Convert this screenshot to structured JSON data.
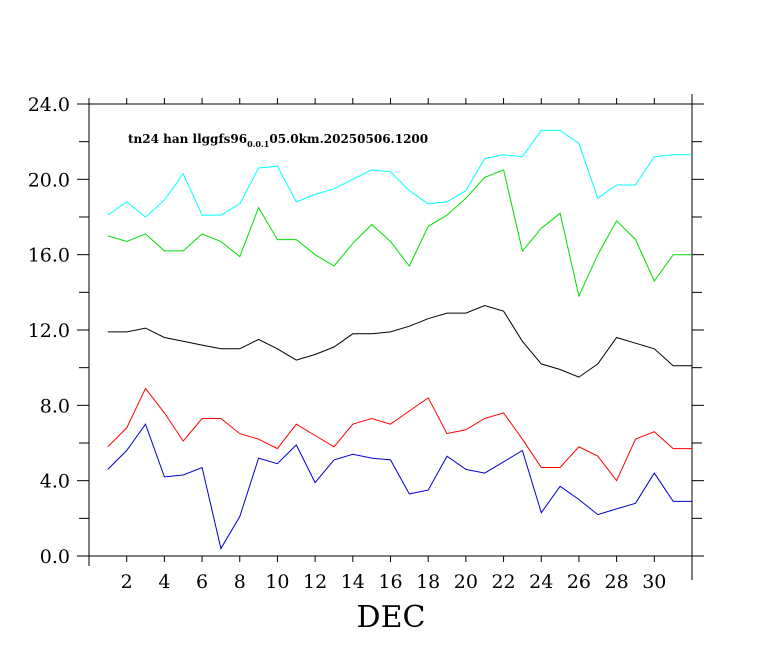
{
  "chart_data": {
    "type": "line",
    "title": "",
    "annotation": {
      "prefix": "tn24 han llggfs96",
      "subscript": "0.0.1",
      "suffix": "05.0km.20250506.1200"
    },
    "xlabel": "DEC",
    "ylabel": "",
    "xlim": [
      0,
      32
    ],
    "ylim": [
      0,
      24
    ],
    "x_ticks": [
      2,
      4,
      6,
      8,
      10,
      12,
      14,
      16,
      18,
      20,
      22,
      24,
      26,
      28,
      30
    ],
    "x_tick_labels": [
      "2",
      "4",
      "6",
      "8",
      "10",
      "12",
      "14",
      "16",
      "18",
      "20",
      "22",
      "24",
      "26",
      "28",
      "30"
    ],
    "y_ticks": [
      0,
      4,
      8,
      12,
      16,
      20,
      24
    ],
    "y_tick_labels": [
      "0.0",
      "4.0",
      "8.0",
      "12.0",
      "16.0",
      "20.0",
      "24.0"
    ],
    "grid": false,
    "legend": "none",
    "x": [
      1,
      2,
      3,
      4,
      5,
      6,
      7,
      8,
      9,
      10,
      11,
      12,
      13,
      14,
      15,
      16,
      17,
      18,
      19,
      20,
      21,
      22,
      23,
      24,
      25,
      26,
      27,
      28,
      29,
      30,
      31,
      32
    ],
    "series": [
      {
        "color": "#00ffff",
        "values": [
          18.1,
          18.8,
          18.0,
          18.9,
          20.3,
          18.1,
          18.1,
          18.7,
          20.6,
          20.7,
          18.8,
          19.2,
          19.5,
          20.0,
          20.5,
          20.4,
          19.4,
          18.7,
          18.8,
          19.4,
          21.1,
          21.3,
          21.2,
          22.6,
          22.6,
          21.9,
          19.0,
          19.7,
          19.7,
          21.2,
          21.3,
          21.3
        ]
      },
      {
        "color": "#00dd00",
        "values": [
          17.0,
          16.7,
          17.1,
          16.2,
          16.2,
          17.1,
          16.7,
          15.9,
          18.5,
          16.8,
          16.8,
          16.0,
          15.4,
          16.6,
          17.6,
          16.7,
          15.4,
          17.5,
          18.1,
          19.0,
          20.1,
          20.5,
          16.2,
          17.4,
          18.2,
          13.8,
          16.0,
          17.8,
          16.8,
          14.6,
          16.0,
          16.0
        ]
      },
      {
        "color": "#000000",
        "values": [
          11.9,
          11.9,
          12.1,
          11.6,
          11.4,
          11.2,
          11.0,
          11.0,
          11.5,
          11.0,
          10.4,
          10.7,
          11.1,
          11.8,
          11.8,
          11.9,
          12.2,
          12.6,
          12.9,
          12.9,
          13.3,
          13.0,
          11.4,
          10.2,
          9.9,
          9.5,
          10.2,
          11.6,
          11.3,
          11.0,
          10.1,
          10.1
        ]
      },
      {
        "color": "#ff0000",
        "values": [
          5.8,
          6.8,
          8.9,
          7.6,
          6.1,
          7.3,
          7.3,
          6.5,
          6.2,
          5.7,
          7.0,
          6.4,
          5.8,
          7.0,
          7.3,
          7.0,
          7.7,
          8.4,
          6.5,
          6.7,
          7.3,
          7.6,
          6.2,
          4.7,
          4.7,
          5.8,
          5.3,
          4.0,
          6.2,
          6.6,
          5.7,
          5.7
        ]
      },
      {
        "color": "#0000cc",
        "values": [
          4.6,
          5.6,
          7.0,
          4.2,
          4.3,
          4.7,
          0.4,
          2.1,
          5.2,
          4.9,
          5.9,
          3.9,
          5.1,
          5.4,
          5.2,
          5.1,
          3.3,
          3.5,
          5.3,
          4.6,
          4.4,
          5.0,
          5.6,
          2.3,
          3.7,
          3.0,
          2.2,
          2.5,
          2.8,
          4.4,
          2.9,
          2.9
        ]
      }
    ]
  }
}
